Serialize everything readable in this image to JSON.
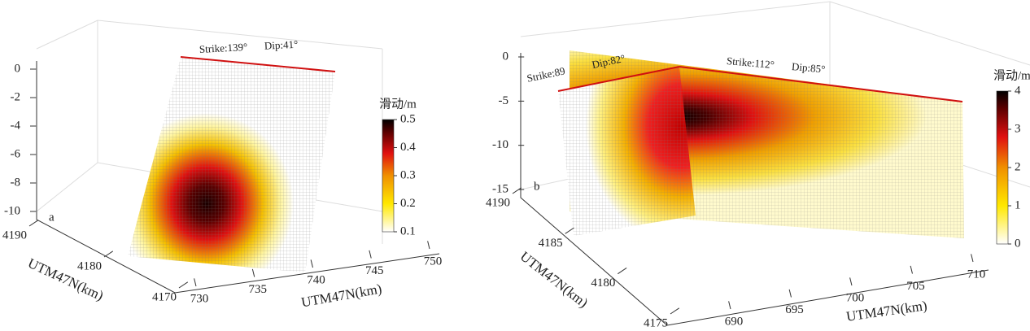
{
  "panels": [
    {
      "label": "a",
      "faults": [
        {
          "strike": "Strike:139°",
          "dip": "Dip:41°"
        }
      ],
      "z_ticks": [
        0,
        -2,
        -4,
        -6,
        -8,
        -10
      ],
      "north_ticks": [
        4190,
        4180,
        4170
      ],
      "east_ticks": [
        730,
        735,
        740,
        745,
        750
      ],
      "north_axis_label": "UTM47N(km)",
      "east_axis_label": "UTM47N(km)",
      "colorbar": {
        "title": "滑动/m",
        "lim": [
          0.1,
          0.5
        ],
        "ticks": [
          0.1,
          0.2,
          0.3,
          0.4,
          0.5
        ]
      }
    },
    {
      "label": "b",
      "faults": [
        {
          "strike": "Strike:89",
          "dip": "Dip:82°"
        },
        {
          "strike": "Strike:112°",
          "dip": "Dip:85°"
        }
      ],
      "z_ticks": [
        0,
        -5,
        -10,
        -15
      ],
      "north_ticks": [
        4190,
        4185,
        4180,
        4175
      ],
      "east_ticks": [
        690,
        695,
        700,
        705,
        710
      ],
      "north_axis_label": "UTM47N(km)",
      "east_axis_label": "UTM47N(km)",
      "colorbar": {
        "title": "滑动/m",
        "lim": [
          0,
          4
        ],
        "ticks": [
          0,
          1,
          2,
          3,
          4
        ]
      }
    }
  ]
}
